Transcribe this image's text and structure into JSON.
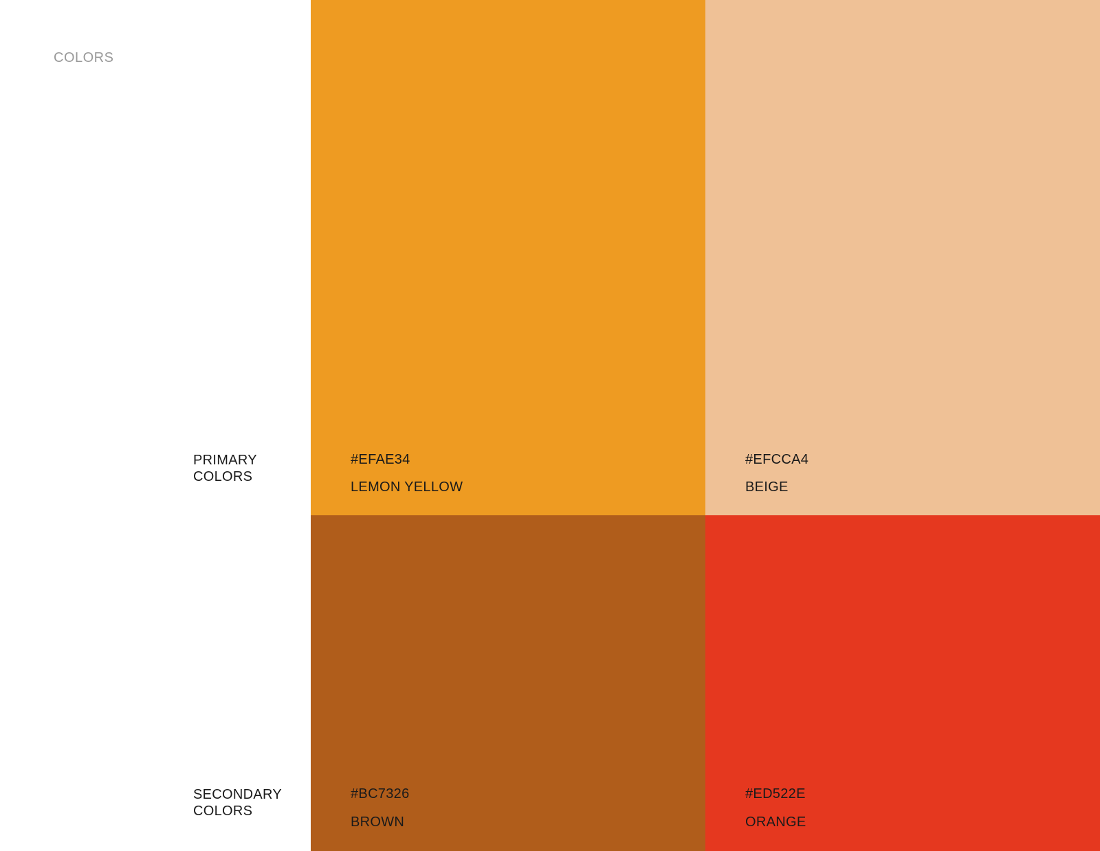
{
  "page_title": "COLORS",
  "groups": {
    "primary": {
      "label_line1": "PRIMARY",
      "label_line2": "COLORS",
      "swatches": [
        {
          "hex": "#EFAE34",
          "name": "LEMON YELLOW",
          "fill": "#EE9B22"
        },
        {
          "hex": "#EFCCA4",
          "name": "BEIGE",
          "fill": "#EFC196"
        }
      ]
    },
    "secondary": {
      "label_line1": "SECONDARY",
      "label_line2": "COLORS",
      "swatches": [
        {
          "hex": "#BC7326",
          "name": "BROWN",
          "fill": "#B05D1B"
        },
        {
          "hex": "#ED522E",
          "name": "ORANGE",
          "fill": "#E5381F"
        }
      ]
    }
  }
}
